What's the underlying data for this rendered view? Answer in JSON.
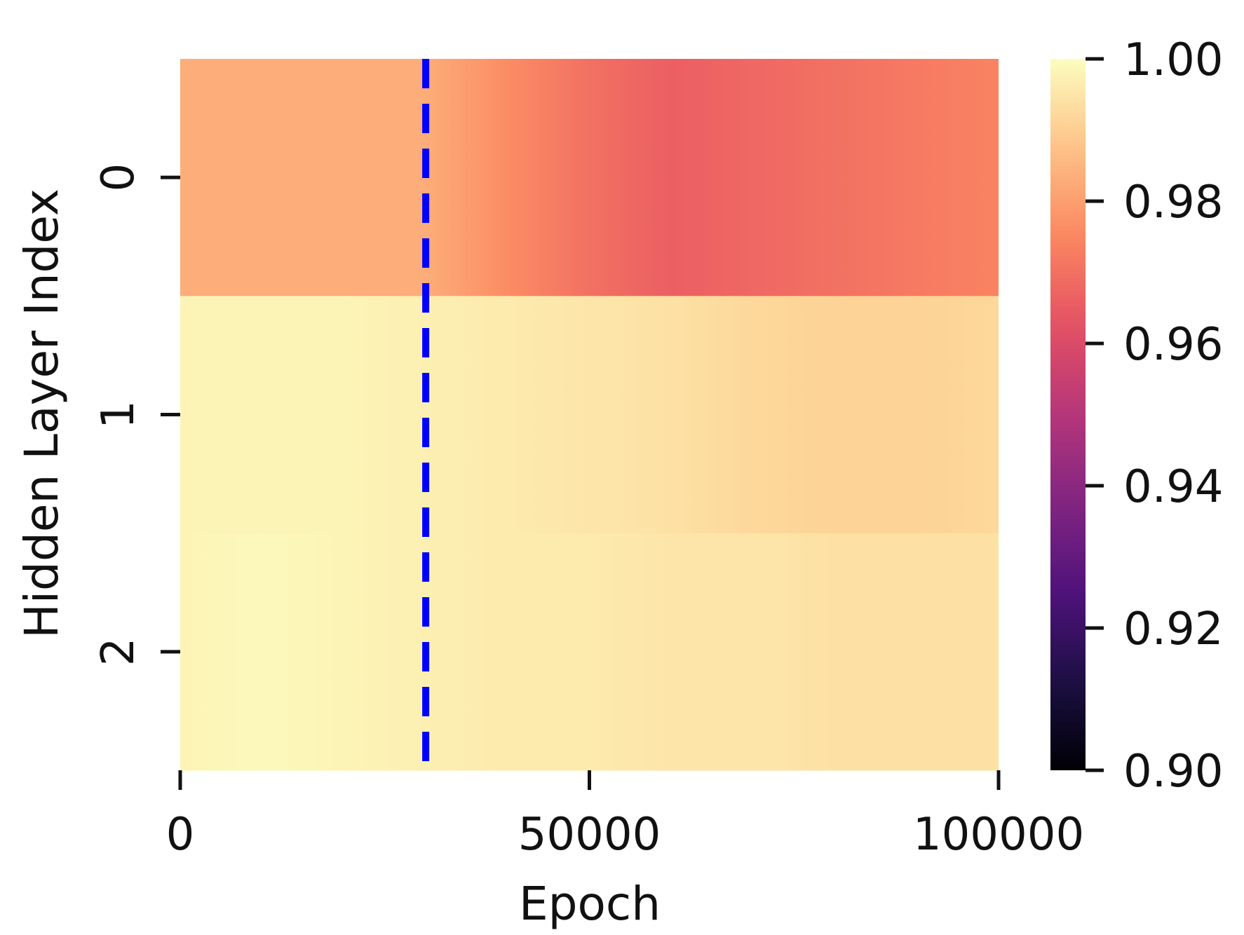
{
  "chart_data": {
    "type": "heatmap",
    "title": "",
    "xlabel": "Epoch",
    "ylabel": "Hidden Layer Index",
    "x_range": [
      0,
      100000
    ],
    "x_ticks": [
      0,
      50000,
      100000
    ],
    "x_tick_labels": [
      "0",
      "50000",
      "100000"
    ],
    "rows": [
      "0",
      "1",
      "2"
    ],
    "x_samples": [
      0,
      10000,
      20000,
      30000,
      40000,
      50000,
      60000,
      70000,
      80000,
      90000,
      100000
    ],
    "values": [
      [
        0.983,
        0.983,
        0.983,
        0.983,
        0.976,
        0.97,
        0.966,
        0.968,
        0.97,
        0.972,
        0.974
      ],
      [
        0.998,
        0.998,
        0.998,
        0.997,
        0.996,
        0.995,
        0.994,
        0.992,
        0.991,
        0.991,
        0.992
      ],
      [
        0.998,
        0.999,
        0.998,
        0.997,
        0.996,
        0.996,
        0.995,
        0.995,
        0.994,
        0.994,
        0.994
      ]
    ],
    "annotation": {
      "type": "vertical-dashed-line",
      "x": 30000,
      "color": "#0000ff"
    },
    "colorbar": {
      "cmap": "magma",
      "range": [
        0.9,
        1.0
      ],
      "ticks": [
        0.9,
        0.92,
        0.94,
        0.96,
        0.98,
        1.0
      ],
      "tick_labels": [
        "0.90",
        "0.92",
        "0.94",
        "0.96",
        "0.98",
        "1.00"
      ]
    },
    "grid": false,
    "legend": "none"
  }
}
